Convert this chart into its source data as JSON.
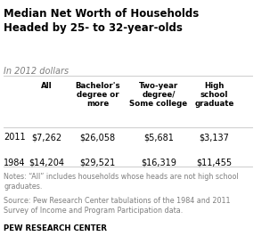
{
  "title": "Median Net Worth of Households\nHeaded by 25- to 32-year-olds",
  "subtitle": "In 2012 dollars",
  "col_headers": [
    "All",
    "Bachelor's\ndegree or\nmore",
    "Two-year\ndegree/\nSome college",
    "High\nschool\ngraduate"
  ],
  "row_labels": [
    "2011",
    "1984"
  ],
  "values": [
    [
      "$7,262",
      "$26,058",
      "$5,681",
      "$3,137"
    ],
    [
      "$14,204",
      "$29,521",
      "$16,319",
      "$11,455"
    ]
  ],
  "notes": "Notes: “All” includes households whose heads are not high school\ngraduates.",
  "source": "Source: Pew Research Center tabulations of the 1984 and 2011\nSurvey of Income and Program Participation data.",
  "footer": "PEW RESEARCH CENTER",
  "bg_color": "#ffffff",
  "title_color": "#000000",
  "subtitle_color": "#7f7f7f",
  "header_color": "#000000",
  "value_color": "#000000",
  "note_color": "#7f7f7f",
  "footer_color": "#000000",
  "row_label_color": "#000000",
  "separator_color": "#cccccc"
}
